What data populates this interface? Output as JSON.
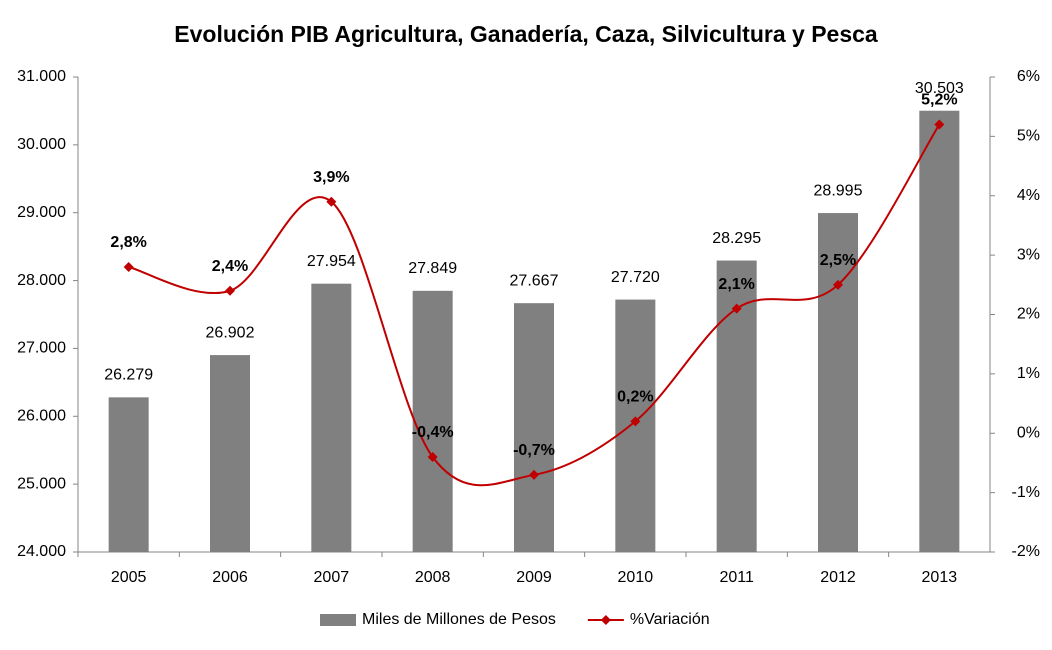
{
  "chart_data": {
    "type": "bar",
    "title": "Evolución PIB Agricultura, Ganadería, Caza, Silvicultura y Pesca",
    "categories": [
      "2005",
      "2006",
      "2007",
      "2008",
      "2009",
      "2010",
      "2011",
      "2012",
      "2013"
    ],
    "series": [
      {
        "name": "Miles de Millones de Pesos",
        "type": "bar",
        "color": "#808080",
        "values": [
          26279,
          26902,
          27954,
          27849,
          27667,
          27720,
          28295,
          28995,
          30503
        ],
        "value_labels": [
          "26.279",
          "26.902",
          "27.954",
          "27.849",
          "27.667",
          "27.720",
          "28.295",
          "28.995",
          "30.503"
        ]
      },
      {
        "name": "%Variación",
        "type": "line",
        "axis": "y2",
        "color": "#c00000",
        "values": [
          2.8,
          2.4,
          3.9,
          -0.4,
          -0.7,
          0.2,
          2.1,
          2.5,
          5.2
        ],
        "value_labels": [
          "2,8%",
          "2,4%",
          "3,9%",
          "-0,4%",
          "-0,7%",
          "0,2%",
          "2,1%",
          "2,5%",
          "5,2%"
        ]
      }
    ],
    "ylim": [
      24000,
      31000
    ],
    "yticks": [
      {
        "value": 24000,
        "label": "24.000"
      },
      {
        "value": 25000,
        "label": "25.000"
      },
      {
        "value": 26000,
        "label": "26.000"
      },
      {
        "value": 27000,
        "label": "27.000"
      },
      {
        "value": 28000,
        "label": "28.000"
      },
      {
        "value": 29000,
        "label": "29.000"
      },
      {
        "value": 30000,
        "label": "30.000"
      },
      {
        "value": 31000,
        "label": "31.000"
      }
    ],
    "y2lim": [
      -2,
      6
    ],
    "y2ticks": [
      {
        "value": -2,
        "label": "-2%"
      },
      {
        "value": -1,
        "label": "-1%"
      },
      {
        "value": 0,
        "label": "0%"
      },
      {
        "value": 1,
        "label": "1%"
      },
      {
        "value": 2,
        "label": "2%"
      },
      {
        "value": 3,
        "label": "3%"
      },
      {
        "value": 4,
        "label": "4%"
      },
      {
        "value": 5,
        "label": "5%"
      },
      {
        "value": 6,
        "label": "6%"
      }
    ],
    "grid": false,
    "legend": "bottom"
  }
}
